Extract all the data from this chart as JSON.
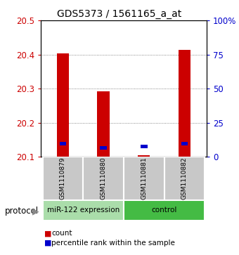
{
  "title": "GDS5373 / 1561165_a_at",
  "samples": [
    "GSM1110879",
    "GSM1110880",
    "GSM1110881",
    "GSM1110882"
  ],
  "red_values": [
    20.403,
    20.292,
    20.105,
    20.413
  ],
  "blue_values": [
    20.133,
    20.122,
    20.125,
    20.133
  ],
  "baseline": 20.1,
  "ylim_left": [
    20.1,
    20.5
  ],
  "yticks_left": [
    20.1,
    20.2,
    20.3,
    20.4,
    20.5
  ],
  "ytick_labels_right": [
    "0",
    "25",
    "50",
    "75",
    "100%"
  ],
  "yticks_right_pct": [
    0,
    25,
    50,
    75,
    100
  ],
  "groups": [
    {
      "label": "miR-122 expression",
      "indices": [
        0,
        1
      ],
      "color": "#aaddaa"
    },
    {
      "label": "control",
      "indices": [
        2,
        3
      ],
      "color": "#44bb44"
    }
  ],
  "protocol_label": "protocol",
  "red_color": "#cc0000",
  "blue_color": "#0000cc",
  "gray_color": "#c8c8c8",
  "plot_bg": "#ffffff",
  "title_fontsize": 10,
  "tick_fontsize": 8.5,
  "sample_fontsize": 6.5,
  "group_fontsize": 7.5,
  "legend_fontsize": 7.5
}
